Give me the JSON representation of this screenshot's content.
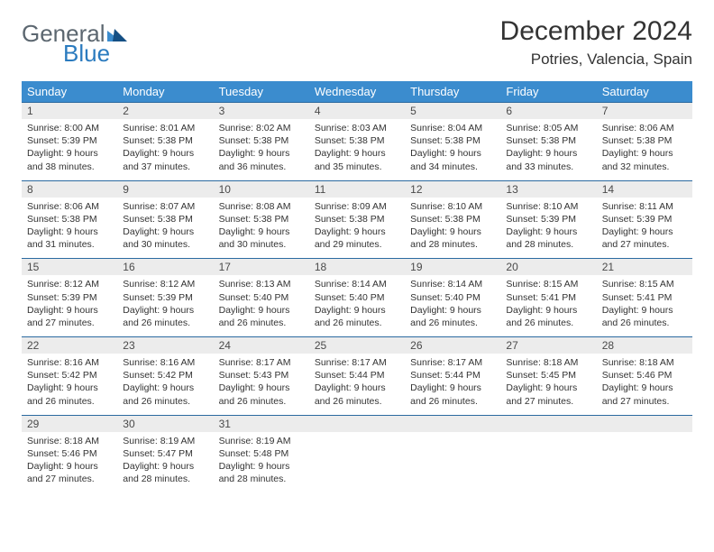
{
  "logo": {
    "word1": "General",
    "word2": "Blue"
  },
  "header": {
    "title": "December 2024",
    "location": "Potries, Valencia, Spain"
  },
  "colors": {
    "header_bar": "#3b8cce",
    "header_text": "#ffffff",
    "rule": "#2b6aa0",
    "daynum_bg": "#ececec",
    "body_text": "#333333",
    "logo_gray": "#5c6770",
    "logo_blue": "#2b7bbf",
    "logo_tri_dark": "#144f84",
    "logo_tri_light": "#3b8cce"
  },
  "weekdays": [
    "Sunday",
    "Monday",
    "Tuesday",
    "Wednesday",
    "Thursday",
    "Friday",
    "Saturday"
  ],
  "weeks": [
    [
      {
        "n": "1",
        "sunrise": "Sunrise: 8:00 AM",
        "sunset": "Sunset: 5:39 PM",
        "day1": "Daylight: 9 hours",
        "day2": "and 38 minutes."
      },
      {
        "n": "2",
        "sunrise": "Sunrise: 8:01 AM",
        "sunset": "Sunset: 5:38 PM",
        "day1": "Daylight: 9 hours",
        "day2": "and 37 minutes."
      },
      {
        "n": "3",
        "sunrise": "Sunrise: 8:02 AM",
        "sunset": "Sunset: 5:38 PM",
        "day1": "Daylight: 9 hours",
        "day2": "and 36 minutes."
      },
      {
        "n": "4",
        "sunrise": "Sunrise: 8:03 AM",
        "sunset": "Sunset: 5:38 PM",
        "day1": "Daylight: 9 hours",
        "day2": "and 35 minutes."
      },
      {
        "n": "5",
        "sunrise": "Sunrise: 8:04 AM",
        "sunset": "Sunset: 5:38 PM",
        "day1": "Daylight: 9 hours",
        "day2": "and 34 minutes."
      },
      {
        "n": "6",
        "sunrise": "Sunrise: 8:05 AM",
        "sunset": "Sunset: 5:38 PM",
        "day1": "Daylight: 9 hours",
        "day2": "and 33 minutes."
      },
      {
        "n": "7",
        "sunrise": "Sunrise: 8:06 AM",
        "sunset": "Sunset: 5:38 PM",
        "day1": "Daylight: 9 hours",
        "day2": "and 32 minutes."
      }
    ],
    [
      {
        "n": "8",
        "sunrise": "Sunrise: 8:06 AM",
        "sunset": "Sunset: 5:38 PM",
        "day1": "Daylight: 9 hours",
        "day2": "and 31 minutes."
      },
      {
        "n": "9",
        "sunrise": "Sunrise: 8:07 AM",
        "sunset": "Sunset: 5:38 PM",
        "day1": "Daylight: 9 hours",
        "day2": "and 30 minutes."
      },
      {
        "n": "10",
        "sunrise": "Sunrise: 8:08 AM",
        "sunset": "Sunset: 5:38 PM",
        "day1": "Daylight: 9 hours",
        "day2": "and 30 minutes."
      },
      {
        "n": "11",
        "sunrise": "Sunrise: 8:09 AM",
        "sunset": "Sunset: 5:38 PM",
        "day1": "Daylight: 9 hours",
        "day2": "and 29 minutes."
      },
      {
        "n": "12",
        "sunrise": "Sunrise: 8:10 AM",
        "sunset": "Sunset: 5:38 PM",
        "day1": "Daylight: 9 hours",
        "day2": "and 28 minutes."
      },
      {
        "n": "13",
        "sunrise": "Sunrise: 8:10 AM",
        "sunset": "Sunset: 5:39 PM",
        "day1": "Daylight: 9 hours",
        "day2": "and 28 minutes."
      },
      {
        "n": "14",
        "sunrise": "Sunrise: 8:11 AM",
        "sunset": "Sunset: 5:39 PM",
        "day1": "Daylight: 9 hours",
        "day2": "and 27 minutes."
      }
    ],
    [
      {
        "n": "15",
        "sunrise": "Sunrise: 8:12 AM",
        "sunset": "Sunset: 5:39 PM",
        "day1": "Daylight: 9 hours",
        "day2": "and 27 minutes."
      },
      {
        "n": "16",
        "sunrise": "Sunrise: 8:12 AM",
        "sunset": "Sunset: 5:39 PM",
        "day1": "Daylight: 9 hours",
        "day2": "and 26 minutes."
      },
      {
        "n": "17",
        "sunrise": "Sunrise: 8:13 AM",
        "sunset": "Sunset: 5:40 PM",
        "day1": "Daylight: 9 hours",
        "day2": "and 26 minutes."
      },
      {
        "n": "18",
        "sunrise": "Sunrise: 8:14 AM",
        "sunset": "Sunset: 5:40 PM",
        "day1": "Daylight: 9 hours",
        "day2": "and 26 minutes."
      },
      {
        "n": "19",
        "sunrise": "Sunrise: 8:14 AM",
        "sunset": "Sunset: 5:40 PM",
        "day1": "Daylight: 9 hours",
        "day2": "and 26 minutes."
      },
      {
        "n": "20",
        "sunrise": "Sunrise: 8:15 AM",
        "sunset": "Sunset: 5:41 PM",
        "day1": "Daylight: 9 hours",
        "day2": "and 26 minutes."
      },
      {
        "n": "21",
        "sunrise": "Sunrise: 8:15 AM",
        "sunset": "Sunset: 5:41 PM",
        "day1": "Daylight: 9 hours",
        "day2": "and 26 minutes."
      }
    ],
    [
      {
        "n": "22",
        "sunrise": "Sunrise: 8:16 AM",
        "sunset": "Sunset: 5:42 PM",
        "day1": "Daylight: 9 hours",
        "day2": "and 26 minutes."
      },
      {
        "n": "23",
        "sunrise": "Sunrise: 8:16 AM",
        "sunset": "Sunset: 5:42 PM",
        "day1": "Daylight: 9 hours",
        "day2": "and 26 minutes."
      },
      {
        "n": "24",
        "sunrise": "Sunrise: 8:17 AM",
        "sunset": "Sunset: 5:43 PM",
        "day1": "Daylight: 9 hours",
        "day2": "and 26 minutes."
      },
      {
        "n": "25",
        "sunrise": "Sunrise: 8:17 AM",
        "sunset": "Sunset: 5:44 PM",
        "day1": "Daylight: 9 hours",
        "day2": "and 26 minutes."
      },
      {
        "n": "26",
        "sunrise": "Sunrise: 8:17 AM",
        "sunset": "Sunset: 5:44 PM",
        "day1": "Daylight: 9 hours",
        "day2": "and 26 minutes."
      },
      {
        "n": "27",
        "sunrise": "Sunrise: 8:18 AM",
        "sunset": "Sunset: 5:45 PM",
        "day1": "Daylight: 9 hours",
        "day2": "and 27 minutes."
      },
      {
        "n": "28",
        "sunrise": "Sunrise: 8:18 AM",
        "sunset": "Sunset: 5:46 PM",
        "day1": "Daylight: 9 hours",
        "day2": "and 27 minutes."
      }
    ],
    [
      {
        "n": "29",
        "sunrise": "Sunrise: 8:18 AM",
        "sunset": "Sunset: 5:46 PM",
        "day1": "Daylight: 9 hours",
        "day2": "and 27 minutes."
      },
      {
        "n": "30",
        "sunrise": "Sunrise: 8:19 AM",
        "sunset": "Sunset: 5:47 PM",
        "day1": "Daylight: 9 hours",
        "day2": "and 28 minutes."
      },
      {
        "n": "31",
        "sunrise": "Sunrise: 8:19 AM",
        "sunset": "Sunset: 5:48 PM",
        "day1": "Daylight: 9 hours",
        "day2": "and 28 minutes."
      },
      null,
      null,
      null,
      null
    ]
  ]
}
